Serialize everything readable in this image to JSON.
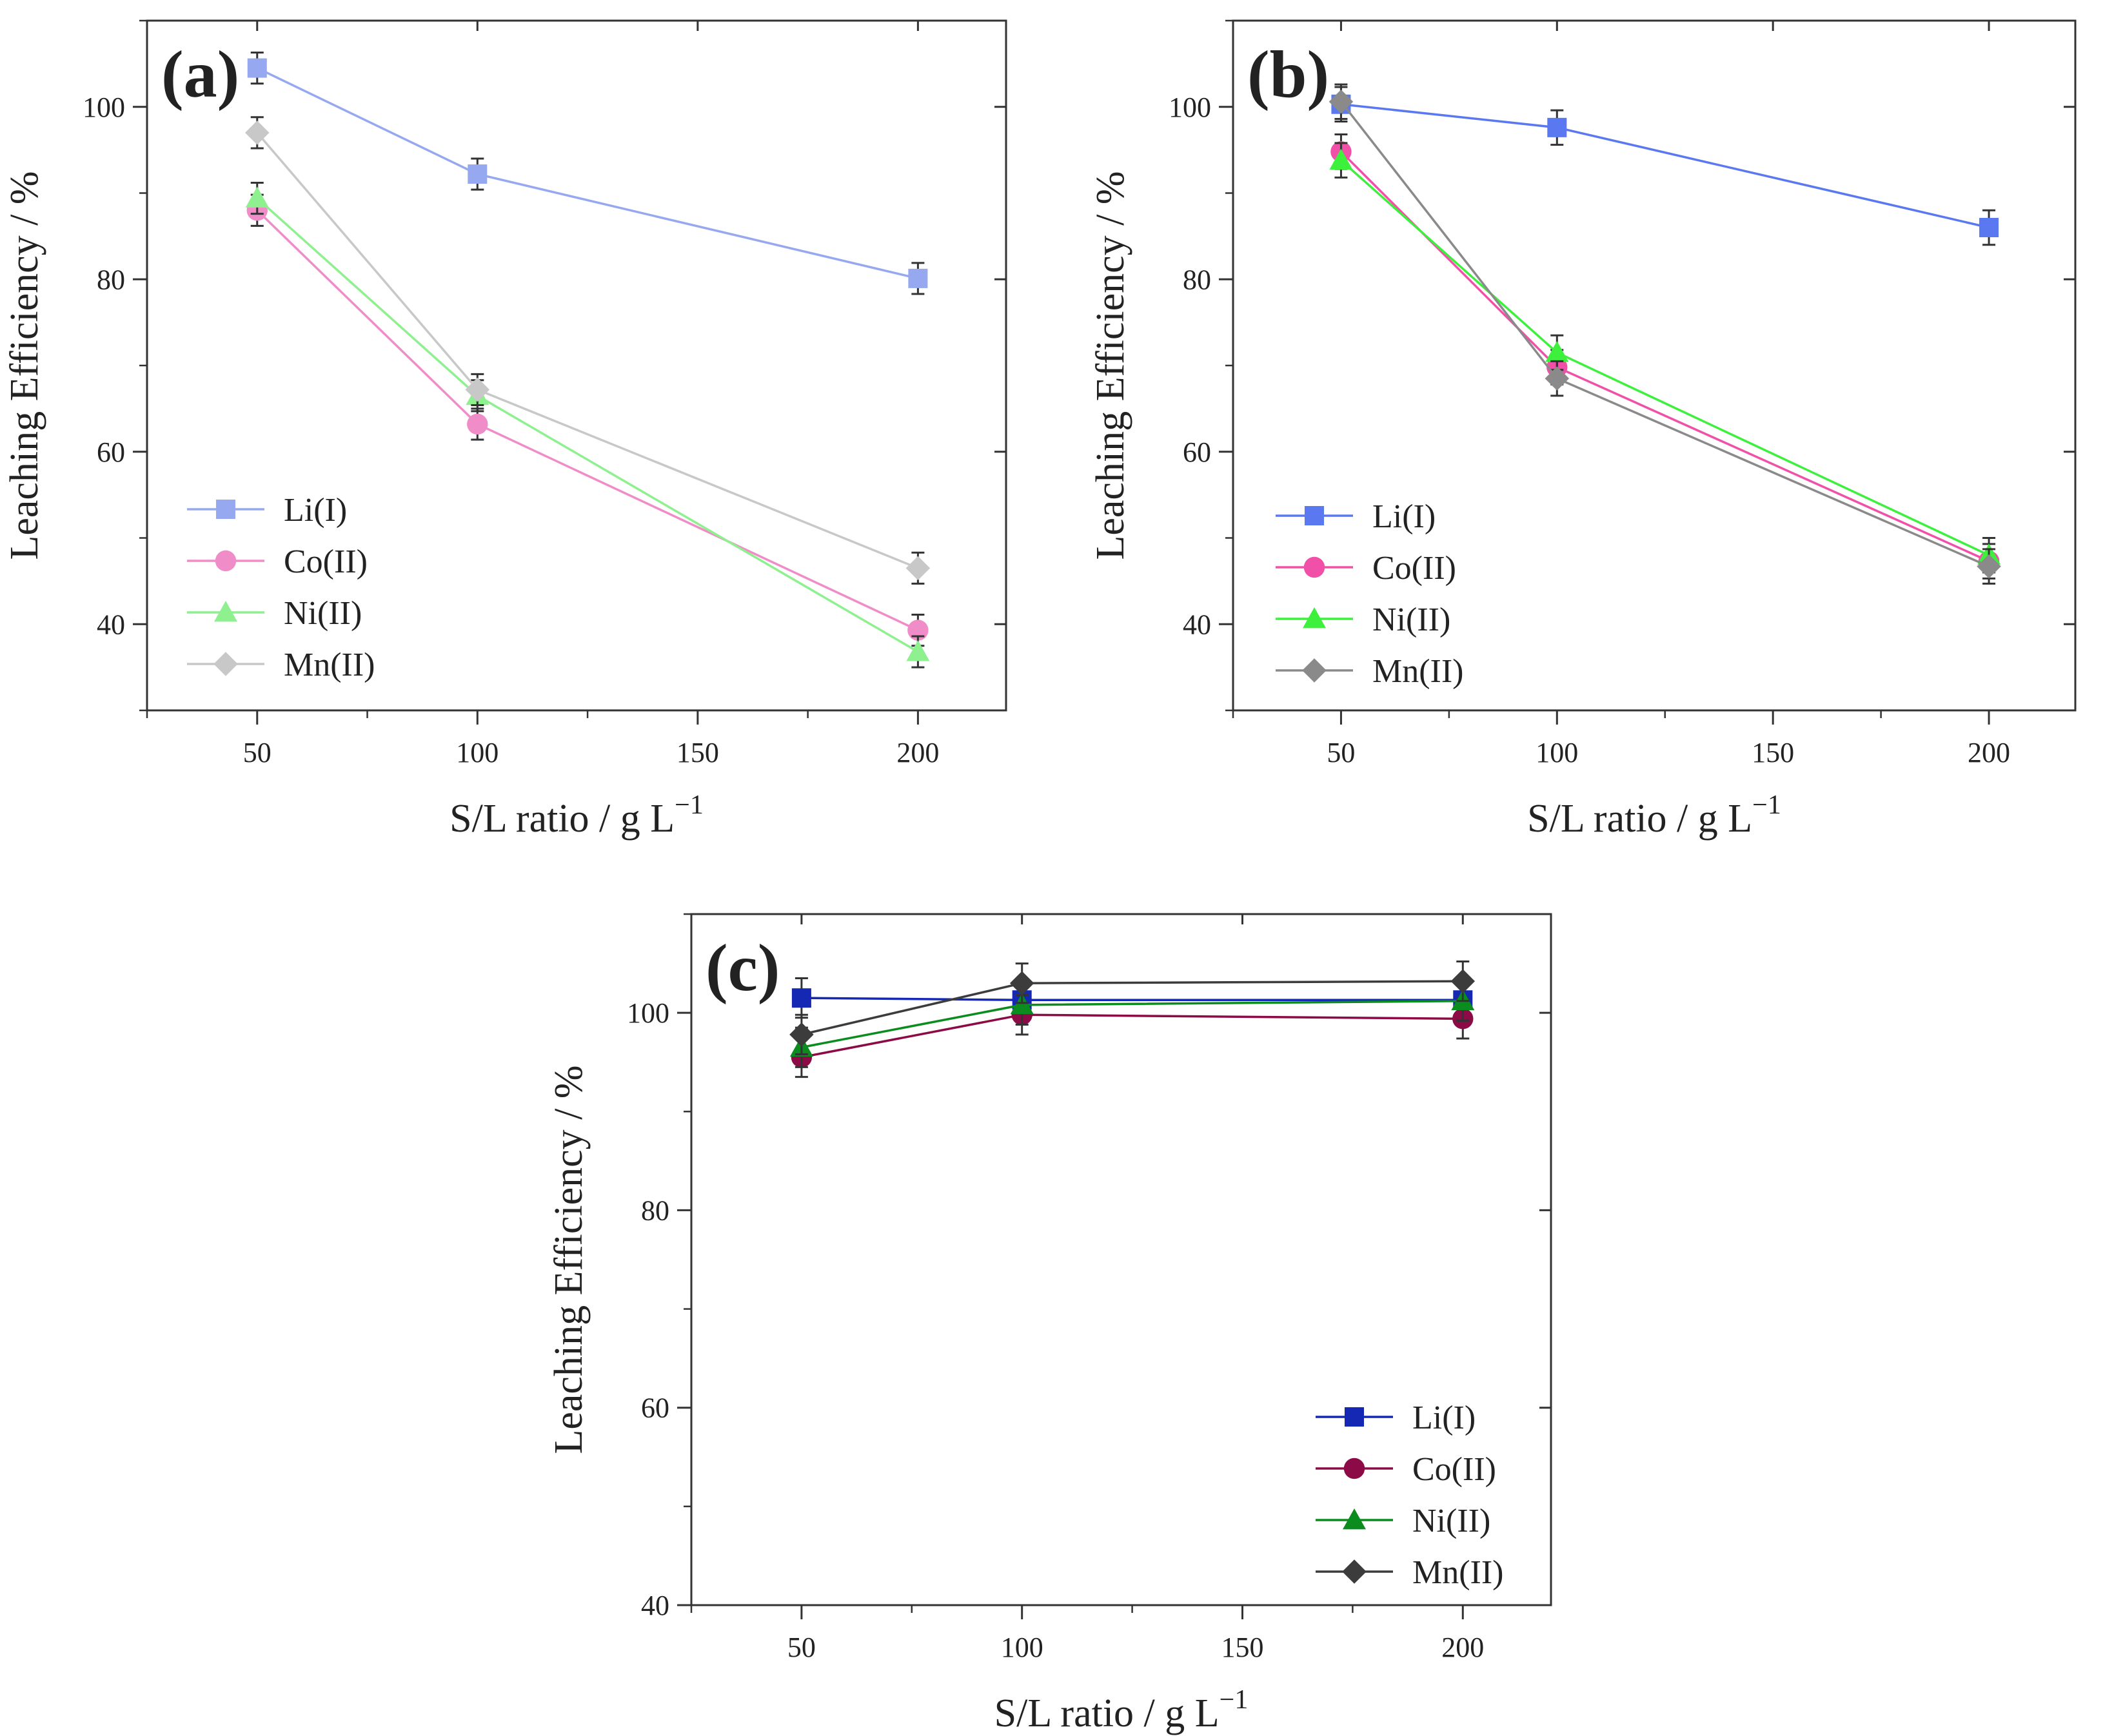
{
  "chart_data": [
    {
      "type": "line",
      "panel_label": "(a)",
      "x": [
        50,
        100,
        200
      ],
      "xlabel": "S/L ratio / g L",
      "xlabel_sup": "−1",
      "ylabel": "Leaching Efficiency / %",
      "xlim": [
        25,
        220
      ],
      "ylim": [
        30,
        110
      ],
      "xticks": [
        50,
        100,
        150,
        200
      ],
      "yticks": [
        40,
        60,
        80,
        100
      ],
      "grid": false,
      "legend_position": "bottom-left",
      "series": [
        {
          "name": "Li(I)",
          "marker": "square",
          "color": "#96a8f0",
          "values": [
            104.5,
            92.2,
            80.1
          ],
          "err": [
            1.8,
            1.8,
            1.8
          ]
        },
        {
          "name": "Co(II)",
          "marker": "circle",
          "color": "#f08cc8",
          "values": [
            88.0,
            63.2,
            39.3
          ],
          "err": [
            1.8,
            1.8,
            1.8
          ]
        },
        {
          "name": "Ni(II)",
          "marker": "triangle",
          "color": "#8ef08e",
          "values": [
            89.4,
            66.5,
            36.8
          ],
          "err": [
            1.8,
            1.8,
            1.8
          ]
        },
        {
          "name": "Mn(II)",
          "marker": "diamond",
          "color": "#c8c8c8",
          "values": [
            97.0,
            67.2,
            46.5
          ],
          "err": [
            1.8,
            1.8,
            1.8
          ]
        }
      ]
    },
    {
      "type": "line",
      "panel_label": "(b)",
      "x": [
        50,
        100,
        200
      ],
      "xlabel": "S/L ratio / g L",
      "xlabel_sup": "−1",
      "ylabel": "Leaching Efficiency / %",
      "xlim": [
        25,
        220
      ],
      "ylim": [
        30,
        110
      ],
      "xticks": [
        50,
        100,
        150,
        200
      ],
      "yticks": [
        40,
        60,
        80,
        100
      ],
      "grid": false,
      "legend_position": "bottom-left",
      "series": [
        {
          "name": "Li(I)",
          "marker": "square",
          "color": "#5a78f0",
          "values": [
            100.3,
            97.6,
            86.0
          ],
          "err": [
            2.0,
            2.0,
            2.0
          ]
        },
        {
          "name": "Co(II)",
          "marker": "circle",
          "color": "#f050a8",
          "values": [
            94.8,
            69.8,
            47.3
          ],
          "err": [
            2.0,
            2.0,
            2.0
          ]
        },
        {
          "name": "Ni(II)",
          "marker": "triangle",
          "color": "#3cf03c",
          "values": [
            93.8,
            71.5,
            48.0
          ],
          "err": [
            2.0,
            2.0,
            2.0
          ]
        },
        {
          "name": "Mn(II)",
          "marker": "diamond",
          "color": "#8a8a8a",
          "values": [
            100.6,
            68.5,
            46.7
          ],
          "err": [
            2.0,
            2.0,
            2.0
          ]
        }
      ]
    },
    {
      "type": "line",
      "panel_label": "(c)",
      "x": [
        50,
        100,
        200
      ],
      "xlabel": "S/L ratio / g L",
      "xlabel_sup": "−1",
      "ylabel": "Leaching Efficiency / %",
      "xlim": [
        25,
        220
      ],
      "ylim": [
        40,
        110
      ],
      "xticks": [
        50,
        100,
        150,
        200
      ],
      "yticks": [
        40,
        60,
        80,
        100
      ],
      "grid": false,
      "legend_position": "bottom-right",
      "series": [
        {
          "name": "Li(I)",
          "marker": "square",
          "color": "#1428b4",
          "values": [
            101.5,
            101.3,
            101.3
          ],
          "err": [
            2.0,
            2.0,
            2.0
          ]
        },
        {
          "name": "Co(II)",
          "marker": "circle",
          "color": "#8c0a46",
          "values": [
            95.5,
            99.8,
            99.4
          ],
          "err": [
            2.0,
            2.0,
            2.0
          ]
        },
        {
          "name": "Ni(II)",
          "marker": "triangle",
          "color": "#0a8c1e",
          "values": [
            96.5,
            100.8,
            101.2
          ],
          "err": [
            2.0,
            2.0,
            2.0
          ]
        },
        {
          "name": "Mn(II)",
          "marker": "diamond",
          "color": "#3c3c3c",
          "values": [
            97.8,
            103.0,
            103.2
          ],
          "err": [
            2.0,
            2.0,
            2.0
          ]
        }
      ]
    }
  ]
}
